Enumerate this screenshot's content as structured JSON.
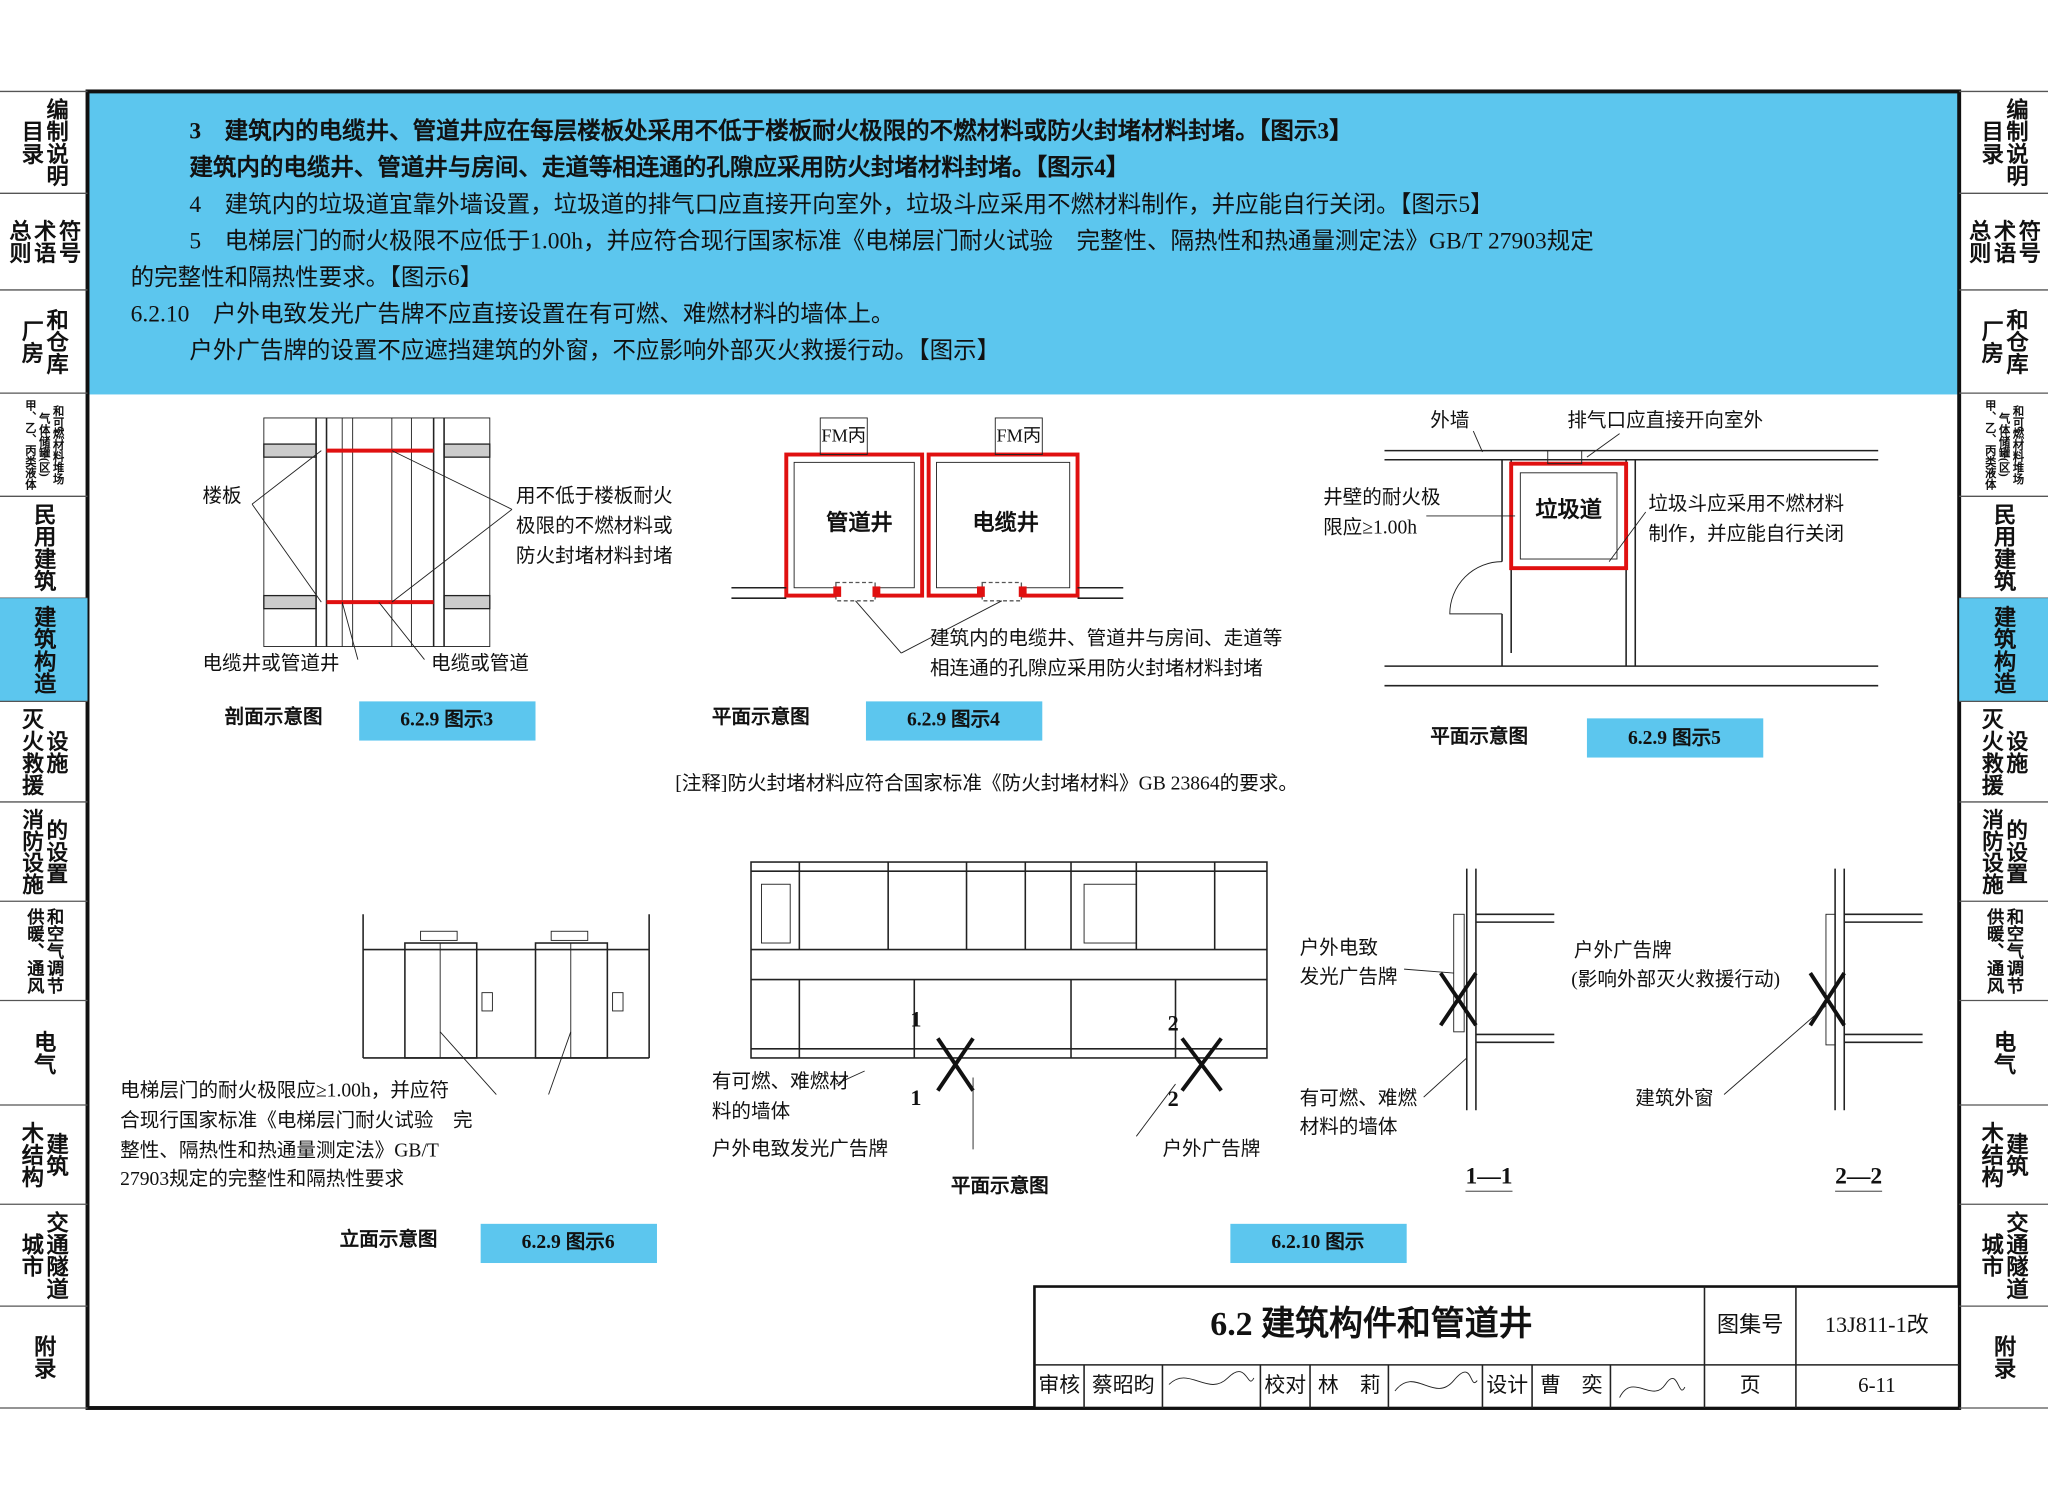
{
  "side_tabs": {
    "active": 5,
    "items": [
      [
        "目录",
        "编制说明"
      ],
      [
        "总则",
        "术语",
        "符号"
      ],
      [
        "厂房",
        "和仓库"
      ],
      [
        "甲、乙、丙类液体",
        "气体储罐(区)",
        "和可燃材料堆场"
      ],
      [
        "民用建筑"
      ],
      [
        "建筑构造"
      ],
      [
        "灭火救援",
        "设施"
      ],
      [
        "消防设施",
        "的设置"
      ],
      [
        "供暖、通风",
        "和空气调节"
      ],
      [
        "电气"
      ],
      [
        "木结构",
        "建筑"
      ],
      [
        "城市",
        "交通隧道"
      ],
      [
        "附录"
      ]
    ]
  },
  "clauses": [
    "3　建筑内的电缆井、管道井应在每层楼板处采用不低于楼板耐火极限的不燃材料或防火封堵材料封堵。【图示3】",
    "建筑内的电缆井、管道井与房间、走道等相连通的孔隙应采用防火封堵材料封堵。【图示4】",
    "4　建筑内的垃圾道宜靠外墙设置，垃圾道的排气口应直接开向室外，垃圾斗应采用不燃材料制作，并应能自行关闭。【图示5】",
    "5　电梯层门的耐火极限不应低于1.00h，并应符合现行国家标准《电梯层门耐火试验　完整性、隔热性和热通量测定法》GB/T 27903规定",
    "的完整性和隔热性要求。【图示6】",
    "6.2.10　户外电致发光广告牌不应直接设置在有可燃、难燃材料的墙体上。",
    "户外广告牌的设置不应遮挡建筑的外窗，不应影响外部灭火救援行动。【图示】"
  ],
  "figure_3": {
    "labels": [
      "楼板",
      "用不低于楼板耐火",
      "极限的不燃材料或",
      "防火封堵材料封堵",
      "电缆井或管道井",
      "电缆或管道"
    ],
    "view": "剖面示意图",
    "caption": "6.2.9 图示3"
  },
  "figure_4": {
    "labels": [
      "FM丙",
      "FM丙",
      "管道井",
      "电缆井",
      "建筑内的电缆井、管道井与房间、走道等",
      "相连通的孔隙应采用防火封堵材料封堵"
    ],
    "view": "平面示意图",
    "caption": "6.2.9 图示4"
  },
  "figure_5": {
    "labels": [
      "外墙",
      "排气口应直接开向室外",
      "井壁的耐火极",
      "限应≥1.00h",
      "垃圾道",
      "垃圾斗应采用不燃材料",
      "制作，并应能自行关闭"
    ],
    "view": "平面示意图",
    "caption": "6.2.9 图示5"
  },
  "note": "[注释]防火封堵材料应符合国家标准《防火封堵材料》GB 23864的要求。",
  "figure_6": {
    "labels": [
      "电梯层门的耐火极限应≥1.00h，并应符",
      "合现行国家标准《电梯层门耐火试验　完",
      "整性、隔热性和热通量测定法》GB/T",
      "27903规定的完整性和隔热性要求"
    ],
    "view": "立面示意图",
    "caption": "6.2.9 图示6"
  },
  "figure_6210": {
    "labels": [
      "1",
      "1",
      "2",
      "2",
      "有可燃、难燃材",
      "料的墙体",
      "户外电致发光广告牌",
      "户外广告牌",
      "户外电致",
      "发光广告牌",
      "有可燃、难燃",
      "材料的墙体",
      "1—1",
      "户外广告牌",
      "(影响外部灭火救援行动)",
      "建筑外窗",
      "2—2"
    ],
    "view": "平面示意图",
    "caption": "6.2.10 图示"
  },
  "title_block": {
    "title": "6.2 建筑构件和管道井",
    "atlas_label": "图集号",
    "atlas_no": "13J811-1改",
    "review_label": "审核",
    "reviewer": "蔡昭昀",
    "check_label": "校对",
    "checker": "林　莉",
    "design_label": "设计",
    "designer": "曹　奕",
    "page_label": "页",
    "page_no": "6-11"
  }
}
